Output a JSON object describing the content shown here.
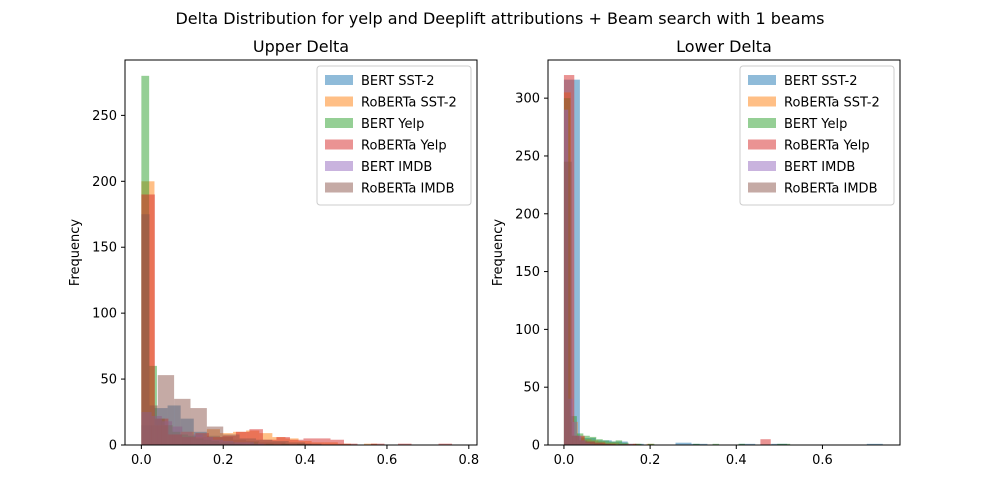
{
  "figure": {
    "suptitle": "Delta Distribution for yelp and Deeplift attributions + Beam search with 1 beams"
  },
  "colors": {
    "BERT SST-2": "#1f77b4",
    "RoBERTa SST-2": "#ff7f0e",
    "BERT Yelp": "#2ca02c",
    "RoBERTa Yelp": "#d62728",
    "BERT IMDB": "#9467bd",
    "RoBERTa IMDB": "#8c564b"
  },
  "chart_data": [
    {
      "type": "bar",
      "subtype": "histogram",
      "title": "Upper Delta",
      "xlabel": "",
      "ylabel": "Frequency",
      "xlim": [
        -0.04,
        0.82
      ],
      "ylim": [
        0,
        292
      ],
      "xticks": [
        0.0,
        0.2,
        0.4,
        0.6,
        0.8
      ],
      "xtick_labels": [
        "0.0",
        "0.2",
        "0.4",
        "0.6",
        "0.8"
      ],
      "yticks": [
        0,
        50,
        100,
        150,
        200,
        250
      ],
      "ytick_labels": [
        "0",
        "50",
        "100",
        "150",
        "200",
        "250"
      ],
      "legend_position": "top-right",
      "alpha": 0.5,
      "series": [
        {
          "name": "BERT SST-2",
          "bins": [
            [
              0.0,
              0.032,
              15
            ],
            [
              0.032,
              0.064,
              28
            ],
            [
              0.064,
              0.096,
              30
            ],
            [
              0.096,
              0.128,
              20
            ],
            [
              0.128,
              0.16,
              10
            ],
            [
              0.16,
              0.192,
              7
            ],
            [
              0.192,
              0.224,
              6
            ],
            [
              0.224,
              0.256,
              4
            ],
            [
              0.256,
              0.288,
              3
            ],
            [
              0.288,
              0.32,
              2
            ],
            [
              0.32,
              0.352,
              2
            ],
            [
              0.352,
              0.384,
              1
            ],
            [
              0.384,
              0.416,
              1
            ]
          ]
        },
        {
          "name": "RoBERTa SST-2",
          "bins": [
            [
              0.0,
              0.032,
              200
            ],
            [
              0.032,
              0.064,
              15
            ],
            [
              0.064,
              0.096,
              8
            ],
            [
              0.096,
              0.128,
              10
            ],
            [
              0.128,
              0.16,
              6
            ],
            [
              0.16,
              0.192,
              12
            ],
            [
              0.192,
              0.224,
              9
            ],
            [
              0.224,
              0.256,
              10
            ],
            [
              0.256,
              0.288,
              11
            ],
            [
              0.288,
              0.32,
              9
            ],
            [
              0.32,
              0.352,
              6
            ],
            [
              0.352,
              0.384,
              5
            ],
            [
              0.384,
              0.416,
              3
            ],
            [
              0.416,
              0.448,
              2
            ],
            [
              0.448,
              0.48,
              2
            ],
            [
              0.48,
              0.512,
              1
            ],
            [
              0.544,
              0.576,
              1
            ]
          ]
        },
        {
          "name": "BERT Yelp",
          "bins": [
            [
              0.0,
              0.019,
              280
            ],
            [
              0.019,
              0.038,
              60
            ],
            [
              0.038,
              0.057,
              20
            ],
            [
              0.057,
              0.076,
              15
            ],
            [
              0.076,
              0.095,
              10
            ],
            [
              0.095,
              0.114,
              8
            ],
            [
              0.114,
              0.133,
              7
            ],
            [
              0.133,
              0.152,
              5
            ],
            [
              0.152,
              0.171,
              4
            ],
            [
              0.171,
              0.19,
              3
            ],
            [
              0.19,
              0.209,
              2
            ],
            [
              0.209,
              0.228,
              2
            ],
            [
              0.228,
              0.247,
              1
            ],
            [
              0.266,
              0.285,
              2
            ],
            [
              0.304,
              0.323,
              1
            ],
            [
              0.342,
              0.361,
              1
            ],
            [
              0.38,
              0.399,
              1
            ]
          ]
        },
        {
          "name": "RoBERTa Yelp",
          "bins": [
            [
              0.0,
              0.033,
              190
            ],
            [
              0.033,
              0.066,
              20
            ],
            [
              0.066,
              0.099,
              8
            ],
            [
              0.099,
              0.132,
              6
            ],
            [
              0.132,
              0.165,
              9
            ],
            [
              0.165,
              0.198,
              6
            ],
            [
              0.198,
              0.231,
              7
            ],
            [
              0.231,
              0.264,
              10
            ],
            [
              0.264,
              0.297,
              12
            ],
            [
              0.297,
              0.33,
              4
            ],
            [
              0.33,
              0.363,
              6
            ],
            [
              0.363,
              0.396,
              4
            ],
            [
              0.396,
              0.429,
              5
            ],
            [
              0.429,
              0.462,
              5
            ],
            [
              0.462,
              0.495,
              4
            ],
            [
              0.495,
              0.528,
              1
            ],
            [
              0.561,
              0.594,
              1
            ],
            [
              0.627,
              0.66,
              1
            ],
            [
              0.726,
              0.759,
              1
            ]
          ]
        },
        {
          "name": "BERT IMDB",
          "bins": [
            [
              0.0,
              0.025,
              25
            ],
            [
              0.025,
              0.05,
              22
            ],
            [
              0.05,
              0.075,
              18
            ],
            [
              0.075,
              0.1,
              14
            ],
            [
              0.1,
              0.125,
              10
            ],
            [
              0.125,
              0.15,
              8
            ],
            [
              0.15,
              0.175,
              6
            ],
            [
              0.175,
              0.2,
              4
            ],
            [
              0.2,
              0.225,
              3
            ],
            [
              0.225,
              0.25,
              2
            ],
            [
              0.25,
              0.275,
              2
            ],
            [
              0.275,
              0.3,
              1
            ]
          ]
        },
        {
          "name": "RoBERTa IMDB",
          "bins": [
            [
              0.0,
              0.02,
              175
            ],
            [
              0.02,
              0.04,
              30
            ],
            [
              0.04,
              0.08,
              53
            ],
            [
              0.08,
              0.12,
              35
            ],
            [
              0.12,
              0.16,
              28
            ],
            [
              0.16,
              0.2,
              14
            ],
            [
              0.2,
              0.24,
              8
            ],
            [
              0.24,
              0.28,
              5
            ],
            [
              0.28,
              0.32,
              4
            ],
            [
              0.32,
              0.36,
              3
            ],
            [
              0.36,
              0.4,
              2
            ],
            [
              0.4,
              0.44,
              1
            ]
          ]
        }
      ]
    },
    {
      "type": "bar",
      "subtype": "histogram",
      "title": "Lower Delta",
      "xlabel": "",
      "ylabel": "Frequency",
      "xlim": [
        -0.037,
        0.78
      ],
      "ylim": [
        0,
        333
      ],
      "xticks": [
        0.0,
        0.2,
        0.4,
        0.6
      ],
      "xtick_labels": [
        "0.0",
        "0.2",
        "0.4",
        "0.6"
      ],
      "yticks": [
        0,
        50,
        100,
        150,
        200,
        250,
        300
      ],
      "ytick_labels": [
        "0",
        "50",
        "100",
        "150",
        "200",
        "250",
        "300"
      ],
      "legend_position": "top-right",
      "alpha": 0.5,
      "series": [
        {
          "name": "BERT SST-2",
          "bins": [
            [
              0.0,
              0.037,
              316
            ],
            [
              0.037,
              0.074,
              6
            ],
            [
              0.074,
              0.111,
              4
            ],
            [
              0.111,
              0.148,
              3
            ],
            [
              0.148,
              0.185,
              1
            ],
            [
              0.259,
              0.296,
              2
            ],
            [
              0.296,
              0.333,
              1
            ],
            [
              0.407,
              0.444,
              1
            ],
            [
              0.481,
              0.518,
              1
            ],
            [
              0.703,
              0.74,
              1
            ]
          ]
        },
        {
          "name": "RoBERTa SST-2",
          "bins": [
            [
              0.0,
              0.016,
              305
            ],
            [
              0.016,
              0.032,
              20
            ],
            [
              0.032,
              0.048,
              7
            ],
            [
              0.048,
              0.064,
              5
            ],
            [
              0.064,
              0.08,
              4
            ],
            [
              0.08,
              0.096,
              3
            ],
            [
              0.096,
              0.112,
              2
            ],
            [
              0.112,
              0.128,
              2
            ],
            [
              0.128,
              0.144,
              1
            ],
            [
              0.16,
              0.176,
              1
            ],
            [
              0.192,
              0.208,
              1
            ]
          ]
        },
        {
          "name": "BERT Yelp",
          "bins": [
            [
              0.0,
              0.015,
              300
            ],
            [
              0.015,
              0.03,
              25
            ],
            [
              0.03,
              0.045,
              10
            ],
            [
              0.045,
              0.06,
              8
            ],
            [
              0.06,
              0.075,
              7
            ],
            [
              0.075,
              0.09,
              5
            ],
            [
              0.09,
              0.105,
              4
            ],
            [
              0.105,
              0.12,
              3
            ],
            [
              0.12,
              0.135,
              4
            ],
            [
              0.135,
              0.15,
              2
            ],
            [
              0.165,
              0.18,
              1
            ],
            [
              0.195,
              0.21,
              1
            ],
            [
              0.3,
              0.315,
              1
            ],
            [
              0.345,
              0.36,
              1
            ],
            [
              0.405,
              0.42,
              1
            ],
            [
              0.495,
              0.51,
              1
            ],
            [
              0.51,
              0.525,
              1
            ]
          ]
        },
        {
          "name": "RoBERTa Yelp",
          "bins": [
            [
              0.0,
              0.024,
              320
            ],
            [
              0.024,
              0.048,
              8
            ],
            [
              0.048,
              0.072,
              3
            ],
            [
              0.072,
              0.096,
              2
            ],
            [
              0.096,
              0.12,
              1
            ],
            [
              0.144,
              0.168,
              1
            ],
            [
              0.456,
              0.48,
              5
            ]
          ]
        },
        {
          "name": "BERT IMDB",
          "bins": [
            [
              0.0,
              0.01,
              290
            ],
            [
              0.01,
              0.02,
              40
            ],
            [
              0.02,
              0.03,
              20
            ],
            [
              0.03,
              0.04,
              8
            ],
            [
              0.04,
              0.05,
              4
            ],
            [
              0.05,
              0.06,
              2
            ],
            [
              0.06,
              0.07,
              1
            ]
          ]
        },
        {
          "name": "RoBERTa IMDB",
          "bins": [
            [
              0.0,
              0.018,
              245
            ],
            [
              0.018,
              0.036,
              8
            ],
            [
              0.036,
              0.054,
              4
            ],
            [
              0.054,
              0.072,
              3
            ],
            [
              0.072,
              0.09,
              2
            ],
            [
              0.09,
              0.108,
              1
            ],
            [
              0.126,
              0.144,
              1
            ]
          ]
        }
      ]
    }
  ]
}
